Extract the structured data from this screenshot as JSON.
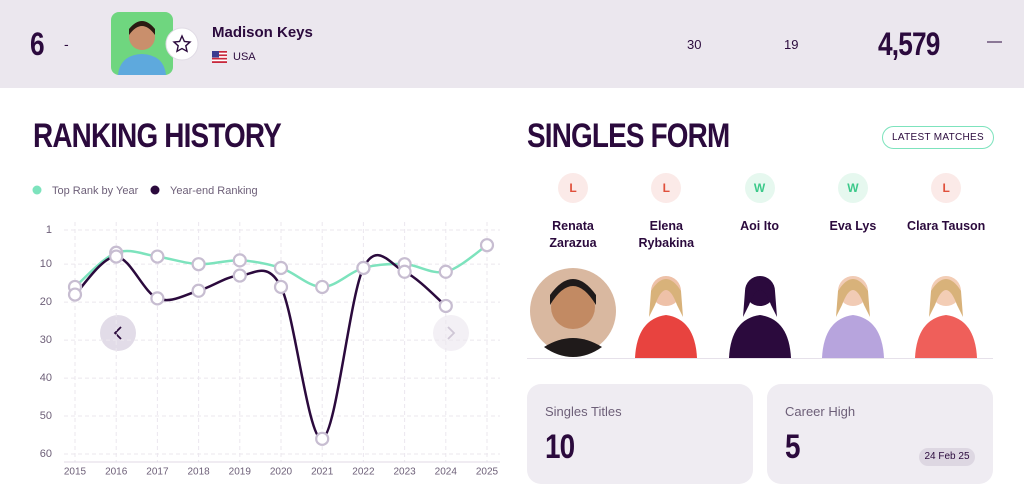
{
  "header": {
    "rank": 6,
    "movement": "-",
    "player_name": "Madison Keys",
    "country": "USA",
    "stat_1": 30,
    "stat_2": 19,
    "points": "4,579",
    "points_change": "—"
  },
  "ranking_history": {
    "title": "RANKING HISTORY",
    "chart_data": {
      "type": "line",
      "categories": [
        "2015",
        "2016",
        "2017",
        "2018",
        "2019",
        "2020",
        "2021",
        "2022",
        "2023",
        "2024",
        "2025"
      ],
      "series": [
        {
          "name": "Top Rank by Year",
          "color": "#7de3bd",
          "values": [
            16,
            7,
            8,
            10,
            9,
            11,
            16,
            11,
            10,
            12,
            5
          ]
        },
        {
          "name": "Year-end Ranking",
          "color": "#2b0a3d",
          "values": [
            18,
            8,
            19,
            17,
            13,
            16,
            56,
            11,
            12,
            21,
            null
          ]
        }
      ],
      "ylim": [
        1,
        60
      ],
      "yticks": [
        1,
        10,
        20,
        30,
        40,
        50,
        60
      ],
      "y_reversed": true,
      "grid": true,
      "legend": "top-left"
    }
  },
  "singles_form": {
    "title": "SINGLES FORM",
    "button": "LATEST MATCHES",
    "matches": [
      {
        "result": "L",
        "opponent": "Renata Zarazua"
      },
      {
        "result": "L",
        "opponent": "Elena Rybakina"
      },
      {
        "result": "W",
        "opponent": "Aoi Ito"
      },
      {
        "result": "W",
        "opponent": "Eva Lys"
      },
      {
        "result": "L",
        "opponent": "Clara Tauson"
      }
    ]
  },
  "stats": [
    {
      "label": "Singles Titles",
      "value": 10
    },
    {
      "label": "Career High",
      "value": 5,
      "date": "24 Feb 25"
    }
  ]
}
